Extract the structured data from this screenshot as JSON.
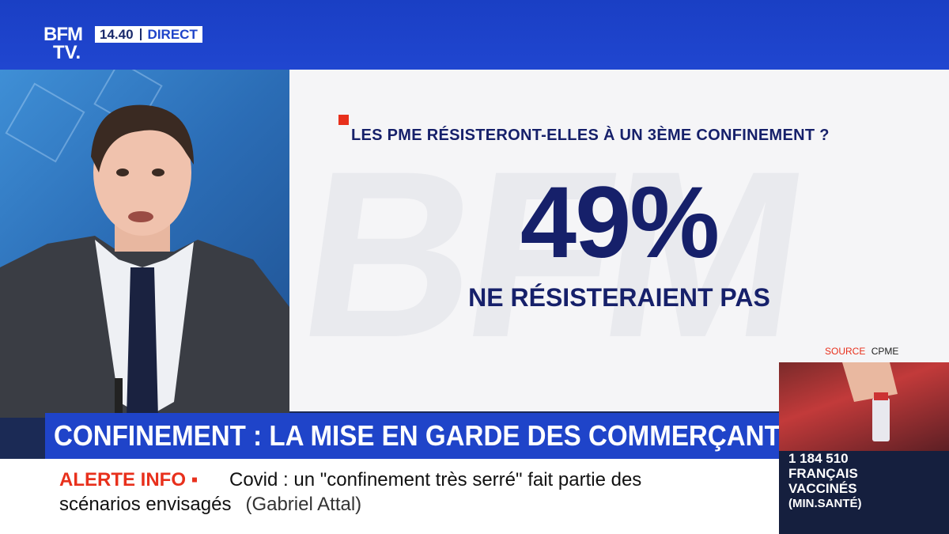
{
  "channel": {
    "logo_line1": "BFM",
    "logo_line2": "TV.",
    "time": "14.40",
    "live_label": "DIRECT"
  },
  "infographic": {
    "question": "LES PME RÉSISTERONT-ELLES À UN 3ÈME CONFINEMENT ?",
    "value": "49%",
    "caption": "NE RÉSISTERAIENT PAS",
    "watermark": "BFM",
    "source_label": "SOURCE",
    "source_value": "CPME"
  },
  "headline": "CONFINEMENT : LA MISE EN GARDE DES COMMERÇANTS",
  "ticker": {
    "alert_label": "ALERTE INFO ▪",
    "line1": "Covid : un \"confinement très serré\" fait partie des",
    "line2": "scénarios envisagés",
    "attribution": "(Gabriel Attal)"
  },
  "vaccine_box": {
    "count": "1 184 510",
    "label1": "FRANÇAIS",
    "label2": "VACCINÉS",
    "source": "(MIN.SANTÉ)"
  },
  "colors": {
    "brand_blue": "#1f44c9",
    "navy": "#16206a",
    "alert_red": "#e8301c"
  }
}
